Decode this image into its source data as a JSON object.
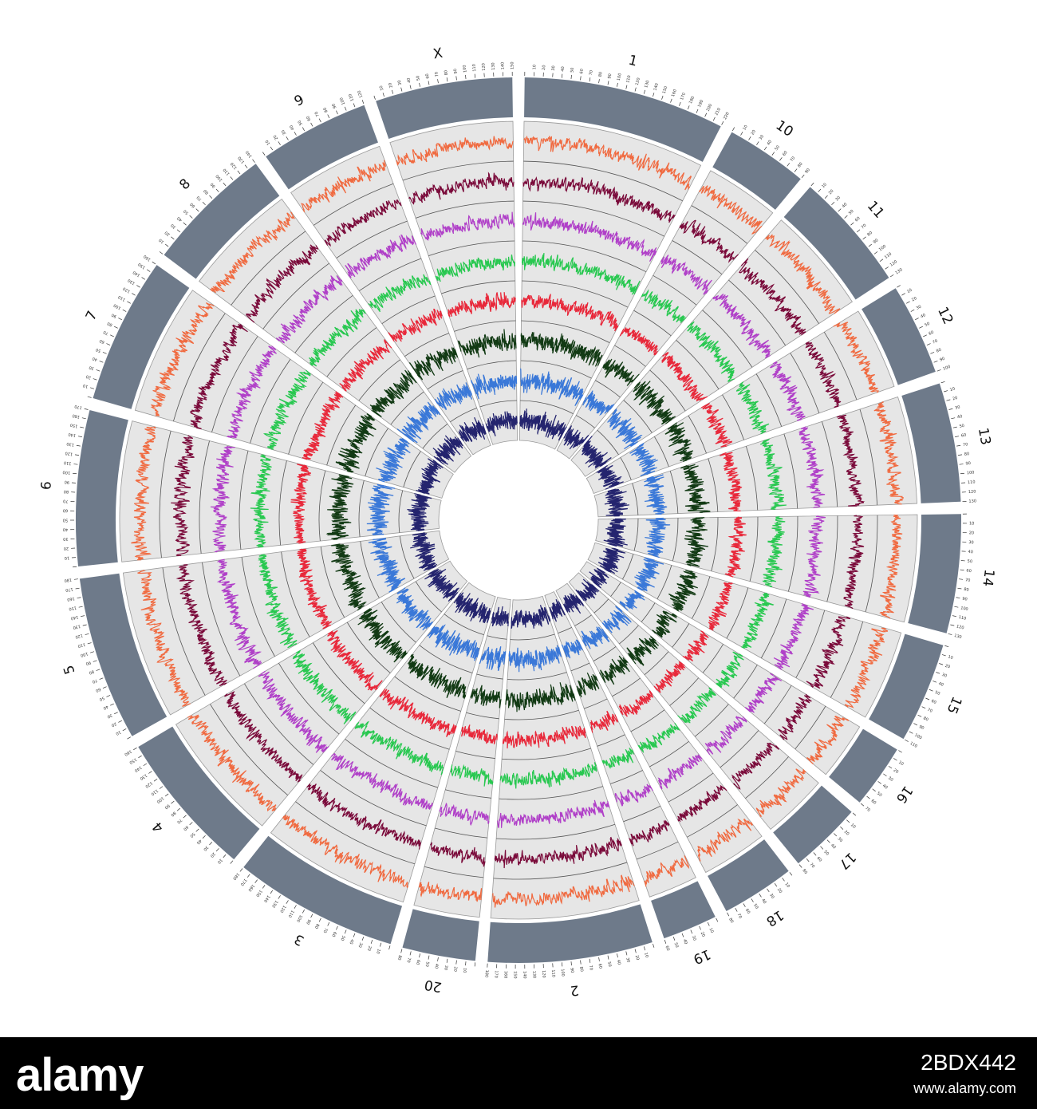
{
  "figure": {
    "type": "circos-genome-plot",
    "colors": {
      "ideogram": "#6e7a8a",
      "panel": "#e6e6e6",
      "track_colors": [
        "#f06a40",
        "#7a0a3a",
        "#b040c8",
        "#28c850",
        "#e8283a",
        "#123a14",
        "#3a78d8",
        "#24246e"
      ]
    },
    "chromosomes": [
      {
        "name": "1",
        "length": 220,
        "tick_step": 10
      },
      {
        "name": "10",
        "length": 90,
        "tick_step": 10
      },
      {
        "name": "11",
        "length": 130,
        "tick_step": 10
      },
      {
        "name": "12",
        "length": 100,
        "tick_step": 10
      },
      {
        "name": "13",
        "length": 130,
        "tick_step": 10
      },
      {
        "name": "14",
        "length": 130,
        "tick_step": 10
      },
      {
        "name": "15",
        "length": 110,
        "tick_step": 10
      },
      {
        "name": "16",
        "length": 70,
        "tick_step": 10
      },
      {
        "name": "17",
        "length": 80,
        "tick_step": 10
      },
      {
        "name": "18",
        "length": 80,
        "tick_step": 10
      },
      {
        "name": "19",
        "length": 60,
        "tick_step": 10
      },
      {
        "name": "2",
        "length": 180,
        "tick_step": 10
      },
      {
        "name": "20",
        "length": 80,
        "tick_step": 10
      },
      {
        "name": "3",
        "length": 180,
        "tick_step": 10
      },
      {
        "name": "4",
        "length": 160,
        "tick_step": 10
      },
      {
        "name": "5",
        "length": 180,
        "tick_step": 10
      },
      {
        "name": "6",
        "length": 170,
        "tick_step": 10
      },
      {
        "name": "7",
        "length": 160,
        "tick_step": 10
      },
      {
        "name": "8",
        "length": 140,
        "tick_step": 10
      },
      {
        "name": "9",
        "length": 120,
        "tick_step": 10
      },
      {
        "name": "X",
        "length": 150,
        "tick_step": 10
      }
    ]
  },
  "watermark": {
    "brand": "alamy",
    "code": "2BDX442",
    "url": "www.alamy.com"
  }
}
